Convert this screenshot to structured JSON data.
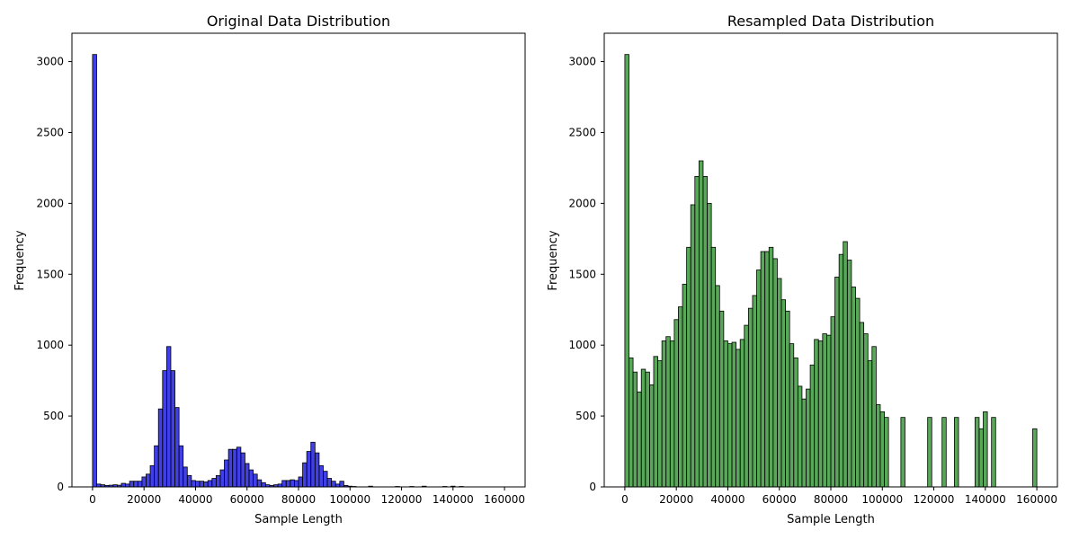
{
  "chart_data": [
    {
      "type": "bar",
      "title": "Original Data Distribution",
      "xlabel": "Sample Length",
      "ylabel": "Frequency",
      "xlim": [
        -8000,
        168000
      ],
      "ylim": [
        0,
        3200
      ],
      "xticks": [
        0,
        20000,
        40000,
        60000,
        80000,
        100000,
        120000,
        140000,
        160000
      ],
      "yticks": [
        0,
        500,
        1000,
        1500,
        2000,
        2500,
        3000
      ],
      "bin_width": 1600,
      "color": "#0000dd",
      "edge_color": "#000000",
      "bins": [
        [
          0,
          3050
        ],
        [
          1600,
          20
        ],
        [
          3200,
          15
        ],
        [
          4800,
          10
        ],
        [
          6400,
          12
        ],
        [
          8000,
          15
        ],
        [
          9600,
          12
        ],
        [
          11200,
          25
        ],
        [
          12800,
          20
        ],
        [
          14400,
          40
        ],
        [
          16000,
          40
        ],
        [
          17600,
          40
        ],
        [
          19200,
          70
        ],
        [
          20800,
          90
        ],
        [
          22400,
          150
        ],
        [
          24000,
          290
        ],
        [
          25600,
          550
        ],
        [
          27200,
          820
        ],
        [
          28800,
          990
        ],
        [
          30400,
          820
        ],
        [
          32000,
          560
        ],
        [
          33600,
          290
        ],
        [
          35200,
          140
        ],
        [
          36800,
          80
        ],
        [
          38400,
          45
        ],
        [
          40000,
          40
        ],
        [
          41600,
          40
        ],
        [
          43200,
          35
        ],
        [
          44800,
          45
        ],
        [
          46400,
          60
        ],
        [
          48000,
          80
        ],
        [
          49600,
          120
        ],
        [
          51200,
          190
        ],
        [
          52800,
          265
        ],
        [
          54400,
          265
        ],
        [
          56000,
          280
        ],
        [
          57600,
          240
        ],
        [
          59200,
          165
        ],
        [
          60800,
          120
        ],
        [
          62400,
          90
        ],
        [
          64000,
          50
        ],
        [
          65600,
          30
        ],
        [
          67200,
          15
        ],
        [
          68800,
          10
        ],
        [
          70400,
          15
        ],
        [
          72000,
          20
        ],
        [
          73600,
          45
        ],
        [
          75200,
          45
        ],
        [
          76800,
          50
        ],
        [
          78400,
          45
        ],
        [
          80000,
          70
        ],
        [
          81600,
          170
        ],
        [
          83200,
          250
        ],
        [
          84800,
          315
        ],
        [
          86400,
          240
        ],
        [
          88000,
          150
        ],
        [
          89600,
          110
        ],
        [
          91200,
          60
        ],
        [
          92800,
          40
        ],
        [
          94400,
          20
        ],
        [
          96000,
          40
        ],
        [
          97600,
          10
        ],
        [
          99200,
          5
        ],
        [
          100800,
          3
        ],
        [
          107200,
          5
        ],
        [
          117600,
          3
        ],
        [
          123200,
          3
        ],
        [
          128000,
          5
        ],
        [
          136000,
          3
        ],
        [
          139200,
          5
        ],
        [
          142400,
          3
        ]
      ]
    },
    {
      "type": "bar",
      "title": "Resampled Data Distribution",
      "xlabel": "Sample Length",
      "ylabel": "Frequency",
      "xlim": [
        -8000,
        168000
      ],
      "ylim": [
        0,
        3200
      ],
      "xticks": [
        0,
        20000,
        40000,
        60000,
        80000,
        100000,
        120000,
        140000,
        160000
      ],
      "yticks": [
        0,
        500,
        1000,
        1500,
        2000,
        2500,
        3000
      ],
      "bin_width": 1600,
      "color": "#228b22",
      "edge_color": "#000000",
      "bins": [
        [
          0,
          3050
        ],
        [
          1600,
          910
        ],
        [
          3200,
          810
        ],
        [
          4800,
          670
        ],
        [
          6400,
          830
        ],
        [
          8000,
          810
        ],
        [
          9600,
          720
        ],
        [
          11200,
          920
        ],
        [
          12800,
          890
        ],
        [
          14400,
          1030
        ],
        [
          16000,
          1060
        ],
        [
          17600,
          1030
        ],
        [
          19200,
          1180
        ],
        [
          20800,
          1270
        ],
        [
          22400,
          1430
        ],
        [
          24000,
          1690
        ],
        [
          25600,
          1990
        ],
        [
          27200,
          2190
        ],
        [
          28800,
          2300
        ],
        [
          30400,
          2190
        ],
        [
          32000,
          2000
        ],
        [
          33600,
          1690
        ],
        [
          35200,
          1420
        ],
        [
          36800,
          1240
        ],
        [
          38400,
          1030
        ],
        [
          40000,
          1010
        ],
        [
          41600,
          1020
        ],
        [
          43200,
          970
        ],
        [
          44800,
          1040
        ],
        [
          46400,
          1140
        ],
        [
          48000,
          1260
        ],
        [
          49600,
          1350
        ],
        [
          51200,
          1530
        ],
        [
          52800,
          1660
        ],
        [
          54400,
          1660
        ],
        [
          56000,
          1690
        ],
        [
          57600,
          1610
        ],
        [
          59200,
          1470
        ],
        [
          60800,
          1320
        ],
        [
          62400,
          1240
        ],
        [
          64000,
          1010
        ],
        [
          65600,
          910
        ],
        [
          67200,
          710
        ],
        [
          68800,
          620
        ],
        [
          70400,
          690
        ],
        [
          72000,
          860
        ],
        [
          73600,
          1040
        ],
        [
          75200,
          1030
        ],
        [
          76800,
          1080
        ],
        [
          78400,
          1070
        ],
        [
          80000,
          1200
        ],
        [
          81600,
          1480
        ],
        [
          83200,
          1640
        ],
        [
          84800,
          1730
        ],
        [
          86400,
          1600
        ],
        [
          88000,
          1410
        ],
        [
          89600,
          1330
        ],
        [
          91200,
          1160
        ],
        [
          92800,
          1080
        ],
        [
          94400,
          890
        ],
        [
          96000,
          990
        ],
        [
          97600,
          580
        ],
        [
          99200,
          530
        ],
        [
          100800,
          490
        ],
        [
          107200,
          490
        ],
        [
          117600,
          490
        ],
        [
          123200,
          490
        ],
        [
          128000,
          490
        ],
        [
          136000,
          490
        ],
        [
          137600,
          410
        ],
        [
          139200,
          530
        ],
        [
          142400,
          490
        ],
        [
          158400,
          410
        ]
      ]
    }
  ]
}
